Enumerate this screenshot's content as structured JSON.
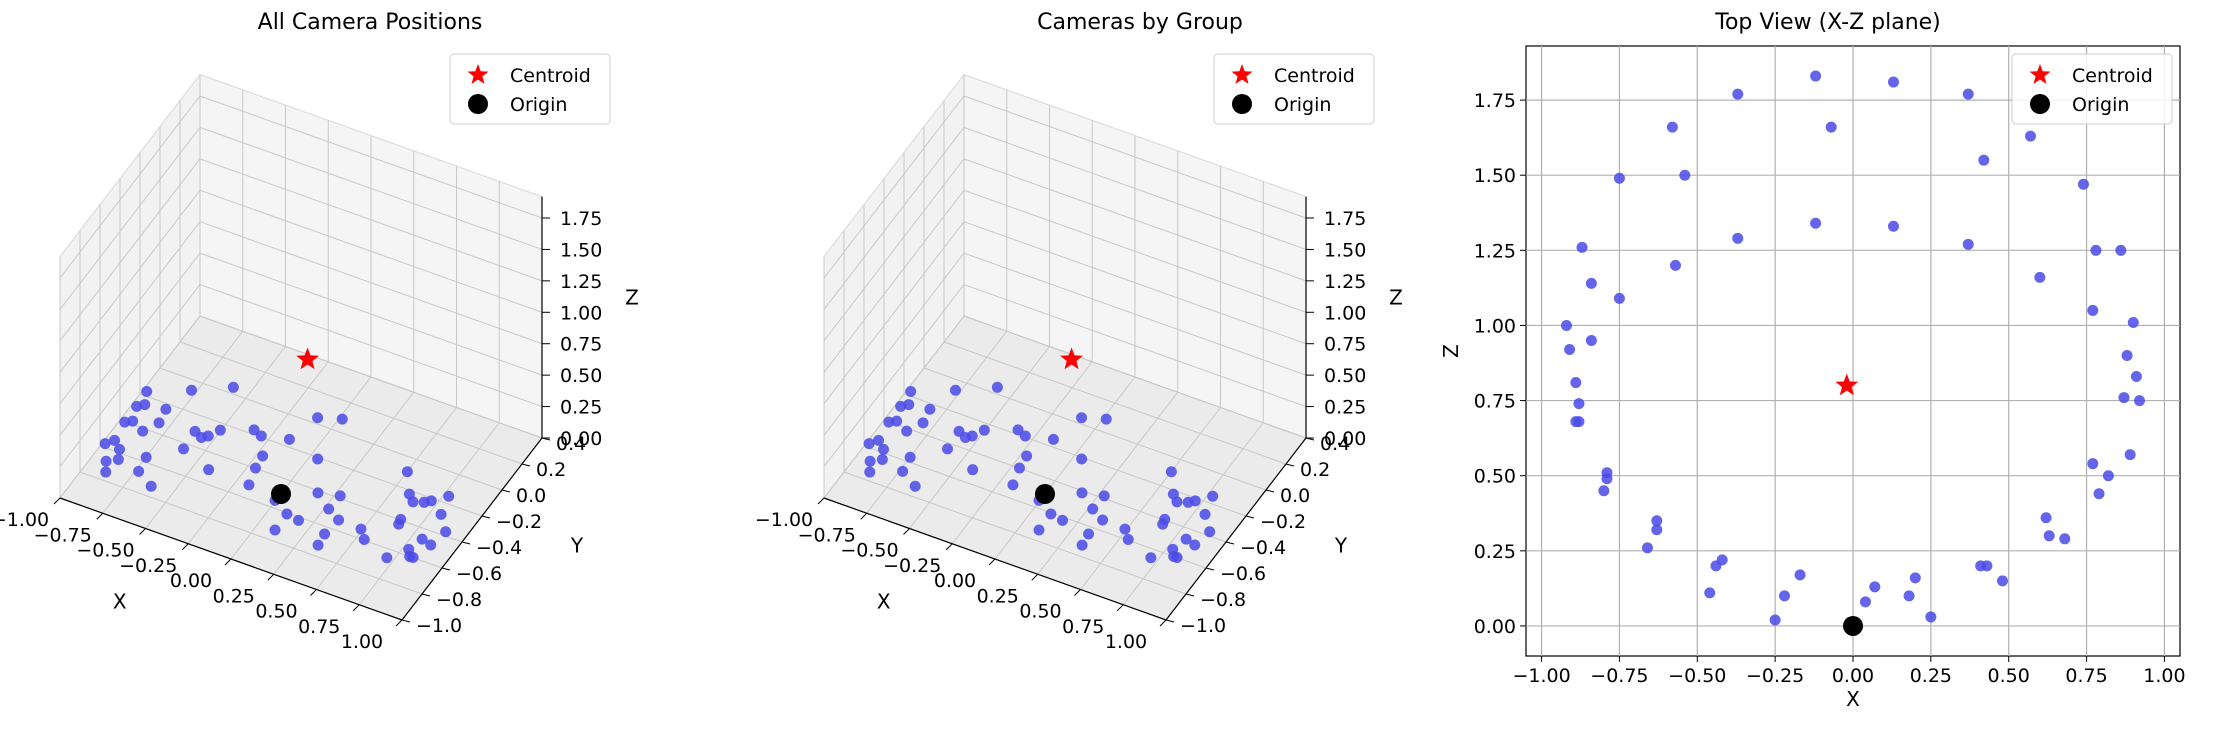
{
  "chart_data": [
    {
      "type": "scatter",
      "projection": "3d",
      "title": "All Camera Positions",
      "xlabel": "X",
      "ylabel": "Y",
      "zlabel": "Z",
      "xlim": [
        -1.0,
        1.0
      ],
      "ylim": [
        -1.0,
        0.4
      ],
      "zlim": [
        0.0,
        1.75
      ],
      "xticks": [
        "−1.00",
        "−0.75",
        "−0.50",
        "−0.25",
        "0.00",
        "0.25",
        "0.50",
        "0.75",
        "1.00"
      ],
      "yticks": [
        "−1.0",
        "−0.8",
        "−0.6",
        "−0.4",
        "−0.2",
        "0.0",
        "0.2",
        "0.4"
      ],
      "zticks": [
        "0.00",
        "0.25",
        "0.50",
        "0.75",
        "1.00",
        "1.25",
        "1.50",
        "1.75"
      ],
      "legend": {
        "position": "top-right",
        "entries": [
          "Centroid",
          "Origin"
        ]
      },
      "colors": {
        "points": "#4a4ae8",
        "centroid": "#ff0000",
        "origin": "#000000"
      },
      "grid": true
    },
    {
      "type": "scatter",
      "projection": "3d",
      "title": "Cameras by Group",
      "xlabel": "X",
      "ylabel": "Y",
      "zlabel": "Z",
      "xlim": [
        -1.0,
        1.0
      ],
      "ylim": [
        -1.0,
        0.4
      ],
      "zlim": [
        0.0,
        1.75
      ],
      "xticks": [
        "−1.00",
        "−0.75",
        "−0.50",
        "−0.25",
        "0.00",
        "0.25",
        "0.50",
        "0.75",
        "1.00"
      ],
      "yticks": [
        "−1.0",
        "−0.8",
        "−0.6",
        "−0.4",
        "−0.2",
        "0.0",
        "0.2",
        "0.4"
      ],
      "zticks": [
        "0.00",
        "0.25",
        "0.50",
        "0.75",
        "1.00",
        "1.25",
        "1.50",
        "1.75"
      ],
      "legend": {
        "position": "top-right",
        "entries": [
          "Centroid",
          "Origin"
        ]
      },
      "colors": {
        "points": "#4a4ae8",
        "centroid": "#ff0000",
        "origin": "#000000"
      },
      "grid": true
    },
    {
      "type": "scatter",
      "title": "Top View (X-Z plane)",
      "xlabel": "X",
      "ylabel": "Z",
      "xlim": [
        -1.05,
        1.05
      ],
      "ylim": [
        -0.1,
        1.93
      ],
      "xticks": [
        -1.0,
        -0.75,
        -0.5,
        -0.25,
        0.0,
        0.25,
        0.5,
        0.75,
        1.0
      ],
      "xtick_labels": [
        "−1.00",
        "−0.75",
        "−0.50",
        "−0.25",
        "0.00",
        "0.25",
        "0.50",
        "0.75",
        "1.00"
      ],
      "yticks": [
        0.0,
        0.25,
        0.5,
        0.75,
        1.0,
        1.25,
        1.5,
        1.75
      ],
      "ytick_labels": [
        "0.00",
        "0.25",
        "0.50",
        "0.75",
        "1.00",
        "1.25",
        "1.50",
        "1.75"
      ],
      "grid": true,
      "legend": {
        "position": "top-right",
        "entries": [
          "Centroid",
          "Origin"
        ]
      },
      "colors": {
        "points": "#4a4ae8",
        "centroid": "#ff0000",
        "origin": "#000000"
      },
      "centroid": [
        -0.02,
        0.8
      ],
      "origin": [
        0.0,
        0.0
      ],
      "points": [
        [
          -0.12,
          1.83
        ],
        [
          0.13,
          1.81
        ],
        [
          -0.37,
          1.77
        ],
        [
          0.37,
          1.77
        ],
        [
          -0.58,
          1.66
        ],
        [
          -0.07,
          1.66
        ],
        [
          0.57,
          1.63
        ],
        [
          0.42,
          1.55
        ],
        [
          -0.75,
          1.49
        ],
        [
          -0.54,
          1.5
        ],
        [
          0.74,
          1.47
        ],
        [
          -0.12,
          1.34
        ],
        [
          0.13,
          1.33
        ],
        [
          -0.37,
          1.29
        ],
        [
          0.37,
          1.27
        ],
        [
          -0.87,
          1.26
        ],
        [
          0.78,
          1.25
        ],
        [
          0.86,
          1.25
        ],
        [
          -0.57,
          1.2
        ],
        [
          0.6,
          1.16
        ],
        [
          -0.84,
          1.14
        ],
        [
          -0.75,
          1.09
        ],
        [
          0.77,
          1.05
        ],
        [
          -0.92,
          1.0
        ],
        [
          0.9,
          1.01
        ],
        [
          -0.84,
          0.95
        ],
        [
          -0.91,
          0.92
        ],
        [
          0.88,
          0.9
        ],
        [
          0.91,
          0.83
        ],
        [
          -0.89,
          0.81
        ],
        [
          0.87,
          0.76
        ],
        [
          0.92,
          0.75
        ],
        [
          -0.88,
          0.74
        ],
        [
          -0.89,
          0.68
        ],
        [
          -0.88,
          0.68
        ],
        [
          0.77,
          0.54
        ],
        [
          0.89,
          0.57
        ],
        [
          -0.79,
          0.51
        ],
        [
          -0.79,
          0.49
        ],
        [
          0.82,
          0.5
        ],
        [
          -0.8,
          0.45
        ],
        [
          0.79,
          0.44
        ],
        [
          -0.63,
          0.35
        ],
        [
          -0.63,
          0.32
        ],
        [
          0.62,
          0.36
        ],
        [
          0.63,
          0.3
        ],
        [
          0.68,
          0.29
        ],
        [
          -0.66,
          0.26
        ],
        [
          -0.42,
          0.22
        ],
        [
          -0.44,
          0.2
        ],
        [
          0.41,
          0.2
        ],
        [
          0.43,
          0.2
        ],
        [
          -0.17,
          0.17
        ],
        [
          -0.46,
          0.11
        ],
        [
          0.2,
          0.16
        ],
        [
          0.48,
          0.15
        ],
        [
          0.07,
          0.13
        ],
        [
          -0.22,
          0.1
        ],
        [
          0.18,
          0.1
        ],
        [
          0.04,
          0.08
        ],
        [
          -0.25,
          0.02
        ],
        [
          0.25,
          0.03
        ]
      ]
    }
  ]
}
